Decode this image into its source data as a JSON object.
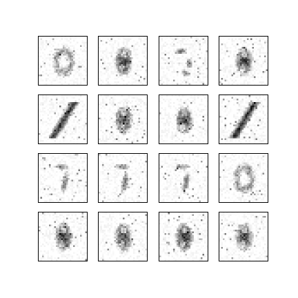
{
  "figure": {
    "rows": 4,
    "cols": 4,
    "background": "#ffffff",
    "frame_color": "#000000",
    "colormap": "gray_r",
    "samples": [
      {
        "pattern": "loop-faint",
        "darkness": 0.55
      },
      {
        "pattern": "blob",
        "darkness": 0.75
      },
      {
        "pattern": "two-faint",
        "darkness": 0.6
      },
      {
        "pattern": "blob",
        "darkness": 0.8
      },
      {
        "pattern": "slash",
        "darkness": 0.9
      },
      {
        "pattern": "blob",
        "darkness": 0.75
      },
      {
        "pattern": "blob",
        "darkness": 0.75
      },
      {
        "pattern": "slash",
        "darkness": 0.95
      },
      {
        "pattern": "seven-faint",
        "darkness": 0.6
      },
      {
        "pattern": "seven-faint",
        "darkness": 0.65
      },
      {
        "pattern": "seven-faint",
        "darkness": 0.6
      },
      {
        "pattern": "loop-faint",
        "darkness": 0.55
      },
      {
        "pattern": "blob",
        "darkness": 0.8
      },
      {
        "pattern": "blob",
        "darkness": 0.75
      },
      {
        "pattern": "blob",
        "darkness": 0.85
      },
      {
        "pattern": "blob",
        "darkness": 0.75
      }
    ]
  }
}
